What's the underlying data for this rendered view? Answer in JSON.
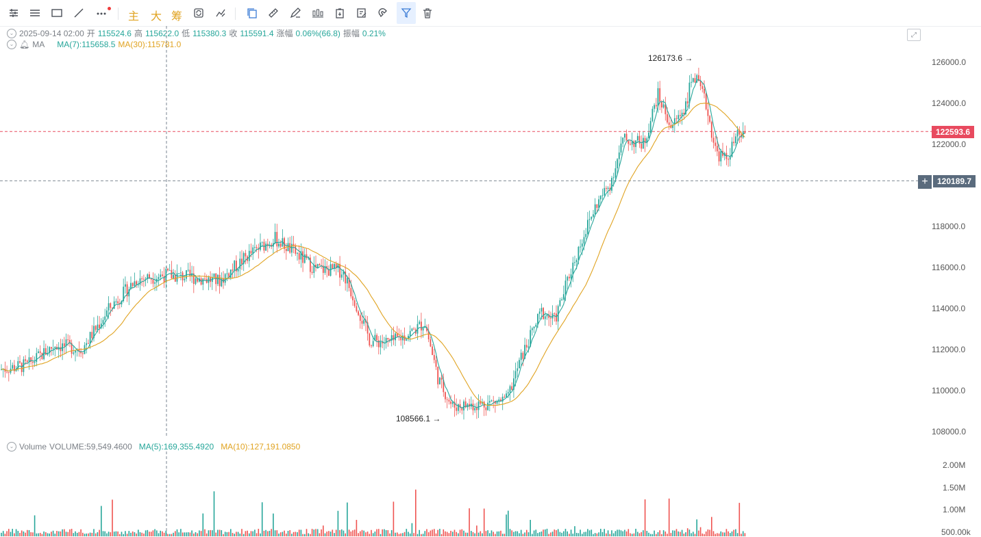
{
  "toolbar": {
    "items": [
      {
        "name": "menu-collapse-icon"
      },
      {
        "name": "list-icon"
      },
      {
        "name": "rectangle-icon"
      },
      {
        "name": "line-icon"
      },
      {
        "name": "more-icon"
      }
    ],
    "text_buttons": [
      "主",
      "大",
      "筹"
    ],
    "drawing_tools": [
      "copy-icon",
      "ruler-icon",
      "pencil-icon",
      "candles-icon",
      "clipboard-icon",
      "edit-icon",
      "magnet-icon",
      "filter-icon",
      "trash-icon"
    ]
  },
  "ohlc": {
    "datetime": "2025-09-14 02:00",
    "open_label": "开",
    "open": "115524.6",
    "high_label": "高",
    "high": "115622.0",
    "low_label": "低",
    "low": "115380.3",
    "close_label": "收",
    "close": "115591.4",
    "change_label": "涨幅",
    "change": "0.06%(66.8)",
    "amp_label": "振幅",
    "amp": "0.21%"
  },
  "ma_row": {
    "label": "MA",
    "ma7": "MA(7):115658.5",
    "ma30": "MA(30):115781.0"
  },
  "volume_row": {
    "label": "Volume",
    "volume": "VOLUME:59,549.4600",
    "ma5": "MA(5):169,355.4920",
    "ma10": "MA(10):127,191.0850"
  },
  "price_axis": [
    "126000.0",
    "124000.0",
    "122000.0",
    "118000.0",
    "116000.0",
    "114000.0",
    "112000.0",
    "110000.0",
    "108000.0"
  ],
  "volume_axis": [
    "2.00M",
    "1.50M",
    "1.00M",
    "500.00k"
  ],
  "tags": {
    "current_price": "122593.6",
    "crosshair_price": "120189.7",
    "crosshair_plus": "+"
  },
  "annotations": {
    "high": "126173.6 →",
    "low": "108566.1 →"
  },
  "colors": {
    "up": "#26a69a",
    "down": "#ef5350",
    "ma7": "#26a69a",
    "ma30": "#e0a321",
    "current_tag": "#e84a5f",
    "crosshair_tag": "#5a6b7d"
  },
  "chart_data": {
    "type": "candlestick",
    "y_range": [
      107200,
      126800
    ],
    "key_points": [
      [
        0,
        111000
      ],
      [
        40,
        111200
      ],
      [
        80,
        112200
      ],
      [
        120,
        112000
      ],
      [
        160,
        114000
      ],
      [
        200,
        115400
      ],
      [
        240,
        115600
      ],
      [
        280,
        115500
      ],
      [
        320,
        115300
      ],
      [
        360,
        116500
      ],
      [
        400,
        117400
      ],
      [
        430,
        116700
      ],
      [
        460,
        115900
      ],
      [
        500,
        115800
      ],
      [
        520,
        114200
      ],
      [
        540,
        112400
      ],
      [
        570,
        112300
      ],
      [
        600,
        112800
      ],
      [
        620,
        113300
      ],
      [
        640,
        110500
      ],
      [
        660,
        109200
      ],
      [
        700,
        109300
      ],
      [
        740,
        109500
      ],
      [
        760,
        111500
      ],
      [
        790,
        113800
      ],
      [
        810,
        113400
      ],
      [
        830,
        115500
      ],
      [
        850,
        117400
      ],
      [
        870,
        119000
      ],
      [
        890,
        120000
      ],
      [
        910,
        122200
      ],
      [
        940,
        122000
      ],
      [
        960,
        124400
      ],
      [
        980,
        122800
      ],
      [
        1000,
        123800
      ],
      [
        1012,
        125400
      ],
      [
        1030,
        124000
      ],
      [
        1045,
        121600
      ],
      [
        1060,
        121200
      ],
      [
        1075,
        122300
      ],
      [
        1090,
        122600
      ]
    ]
  }
}
